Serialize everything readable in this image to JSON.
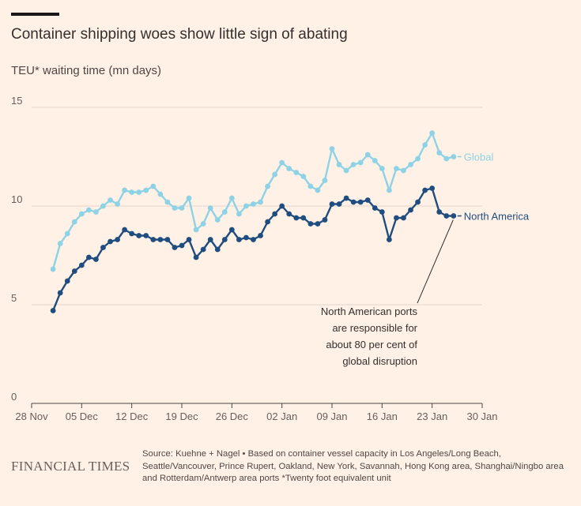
{
  "header": {
    "title": "Container shipping woes show little sign of abating",
    "subtitle": "TEU* waiting time (mn days)"
  },
  "footer": {
    "brand": "FINANCIAL TIMES",
    "source": "Source: Kuehne + Nagel • Based on container vessel capacity in Los Angeles/Long Beach, Seattle/Vancouver, Prince Rupert, Oakland, New York, Savannah, Hong Kong area, Shanghai/Ningbo area and Rotterdam/Antwerp area ports *Twenty foot equivalent unit"
  },
  "colors": {
    "global": "#8ed2e6",
    "north_america": "#1f4d80",
    "grid": "#e3d5c9",
    "text": "#66605c"
  },
  "chart_data": {
    "type": "line",
    "title": "Container shipping woes show little sign of abating",
    "ylabel": "TEU* waiting time (mn days)",
    "ylim": [
      0,
      15
    ],
    "yticks": [
      0,
      5,
      10,
      15
    ],
    "xlim": [
      0,
      63
    ],
    "x_unit": "days since 28 Nov",
    "xticks": [
      {
        "day": 0,
        "label": "28 Nov"
      },
      {
        "day": 7,
        "label": "05 Dec"
      },
      {
        "day": 14,
        "label": "12 Dec"
      },
      {
        "day": 21,
        "label": "19 Dec"
      },
      {
        "day": 28,
        "label": "26 Dec"
      },
      {
        "day": 35,
        "label": "02 Jan"
      },
      {
        "day": 42,
        "label": "09 Jan"
      },
      {
        "day": 49,
        "label": "16 Jan"
      },
      {
        "day": 56,
        "label": "23 Jan"
      },
      {
        "day": 63,
        "label": "30 Jan"
      }
    ],
    "x": [
      3,
      4,
      5,
      6,
      7,
      8,
      9,
      10,
      11,
      12,
      13,
      14,
      15,
      16,
      17,
      18,
      19,
      20,
      21,
      22,
      23,
      24,
      25,
      26,
      27,
      28,
      29,
      30,
      31,
      32,
      33,
      34,
      35,
      36,
      37,
      38,
      39,
      40,
      41,
      42,
      43,
      44,
      45,
      46,
      47,
      48,
      49,
      50,
      51,
      52,
      53,
      54,
      55,
      56,
      57,
      58,
      59
    ],
    "series": [
      {
        "name": "Global",
        "values": [
          6.8,
          8.1,
          8.6,
          9.2,
          9.6,
          9.8,
          9.7,
          10.0,
          10.3,
          10.1,
          10.8,
          10.7,
          10.7,
          10.8,
          11.0,
          10.6,
          10.2,
          9.9,
          9.9,
          10.4,
          8.8,
          9.1,
          9.9,
          9.3,
          9.7,
          10.4,
          9.6,
          10.0,
          10.1,
          10.2,
          11.0,
          11.6,
          12.2,
          11.9,
          11.7,
          11.5,
          11.0,
          10.8,
          11.3,
          12.9,
          12.1,
          11.8,
          12.1,
          12.2,
          12.6,
          12.3,
          11.9,
          10.8,
          11.9,
          11.8,
          12.1,
          12.4,
          13.1,
          13.7,
          12.7,
          12.4,
          12.5
        ]
      },
      {
        "name": "North America",
        "values": [
          4.7,
          5.6,
          6.2,
          6.7,
          7.0,
          7.4,
          7.3,
          7.9,
          8.2,
          8.3,
          8.8,
          8.6,
          8.5,
          8.5,
          8.3,
          8.3,
          8.3,
          7.9,
          8.0,
          8.3,
          7.4,
          7.8,
          8.3,
          7.8,
          8.3,
          8.8,
          8.3,
          8.4,
          8.3,
          8.5,
          9.2,
          9.6,
          10.0,
          9.6,
          9.4,
          9.4,
          9.1,
          9.1,
          9.3,
          10.1,
          10.1,
          10.4,
          10.2,
          10.2,
          10.3,
          9.9,
          9.7,
          8.3,
          9.4,
          9.4,
          9.8,
          10.2,
          10.8,
          10.9,
          9.7,
          9.5,
          9.5
        ]
      }
    ],
    "annotation": {
      "lines": [
        "North American ports",
        "are responsible for",
        "about 80 per cent of",
        "global disruption"
      ]
    }
  }
}
